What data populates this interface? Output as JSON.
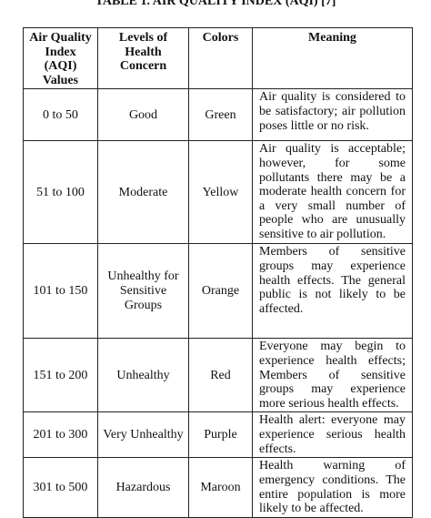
{
  "title": "TABLE 1. AIR QUALITY INDEX (AQI) [7]",
  "table": {
    "header": [
      "Air Quality Index (AQI) Values",
      "Levels of Health Concern",
      "Colors",
      "Meaning"
    ],
    "rows": [
      [
        "0 to 50",
        "Good",
        "Green",
        "Air quality is considered to be satisfactory; air pollution poses little or no risk."
      ],
      [
        "51 to 100",
        "Moderate",
        "Yellow",
        "Air quality is acceptable; however, for some pollutants there may be a moderate health concern for a very small number of people who are unusually sensitive to air pollution."
      ],
      [
        "101 to 150",
        "Unhealthy for Sensitive Groups",
        "Orange",
        "Members of sensitive groups may experience health effects. The general public is not likely to be affected."
      ],
      [
        "151 to 200",
        "Unhealthy",
        "Red",
        "Everyone may begin to experience health effects; Members of sensitive groups may experience more serious health effects."
      ],
      [
        "201 to 300",
        "Very Unhealthy",
        "Purple",
        "Health alert: everyone may experience serious health effects."
      ],
      [
        "301 to 500",
        "Hazardous",
        "Maroon",
        "Health warning of emergency conditions. The entire population is more likely to be affected."
      ]
    ]
  }
}
